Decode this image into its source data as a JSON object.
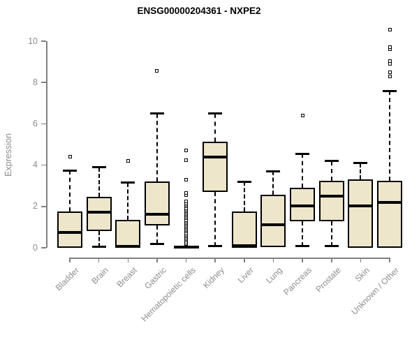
{
  "chart_data": {
    "type": "boxplot",
    "title": "ENSG00000204361 - NXPE2",
    "ylabel": "Expression",
    "xlabel": "",
    "ylim": [
      0,
      10.6
    ],
    "y_ticks": [
      0,
      2,
      4,
      6,
      8,
      10
    ],
    "grid": false,
    "legend": "none",
    "colors": {
      "box_fill": "#EDE6CB",
      "box_border": "#000000",
      "median": "#000000",
      "whisker": "#000000",
      "axis": "#808080",
      "axis_text": "#8c8c8c",
      "title_text": "#000000",
      "background": "#ffffff"
    },
    "categories": [
      "Bladder",
      "Brain",
      "Breast",
      "Gastric",
      "Hematopoietic cells",
      "Kidney",
      "Liver",
      "Lung",
      "Pancreas",
      "Prostate",
      "Skin",
      "Unknown / Other"
    ],
    "series": [
      {
        "name": "Bladder",
        "low": 0,
        "q1": 0,
        "median": 0.74,
        "q3": 1.76,
        "high": 3.75,
        "outliers": [
          4.4
        ]
      },
      {
        "name": "Brain",
        "low": 0.05,
        "q1": 0.8,
        "median": 1.72,
        "q3": 2.45,
        "high": 3.9,
        "outliers": []
      },
      {
        "name": "Breast",
        "low": 0,
        "q1": 0,
        "median": 0.08,
        "q3": 1.35,
        "high": 3.15,
        "outliers": [
          4.2
        ]
      },
      {
        "name": "Gastric",
        "low": 0.2,
        "q1": 1.08,
        "median": 1.62,
        "q3": 3.2,
        "high": 6.5,
        "outliers": [
          8.55
        ]
      },
      {
        "name": "Hematopoietic cells",
        "low": 0,
        "q1": 0,
        "median": 0.04,
        "q3": 0.1,
        "high": 0.1,
        "outliers": [
          0.2,
          0.27,
          0.34,
          0.42,
          0.49,
          0.56,
          0.63,
          0.7,
          0.78,
          0.85,
          0.92,
          0.99,
          1.06,
          1.13,
          1.2,
          1.28,
          1.35,
          1.42,
          1.49,
          1.56,
          1.63,
          1.7,
          1.78,
          1.85,
          1.92,
          2.0,
          2.08,
          2.15,
          2.25,
          2.55,
          2.65,
          3.3,
          4.25,
          4.72
        ]
      },
      {
        "name": "Kidney",
        "low": 0.07,
        "q1": 2.7,
        "median": 4.4,
        "q3": 5.13,
        "high": 6.5,
        "outliers": []
      },
      {
        "name": "Liver",
        "low": 0,
        "q1": 0,
        "median": 0.1,
        "q3": 1.76,
        "high": 3.2,
        "outliers": []
      },
      {
        "name": "Lung",
        "low": 0.05,
        "q1": 0.05,
        "median": 1.11,
        "q3": 2.57,
        "high": 3.7,
        "outliers": []
      },
      {
        "name": "Pancreas",
        "low": 0.07,
        "q1": 1.28,
        "median": 2.03,
        "q3": 2.9,
        "high": 4.55,
        "outliers": [
          6.4
        ]
      },
      {
        "name": "Prostate",
        "low": 0.07,
        "q1": 1.28,
        "median": 2.5,
        "q3": 3.25,
        "high": 4.2,
        "outliers": []
      },
      {
        "name": "Skin",
        "low": 0,
        "q1": 0,
        "median": 2.03,
        "q3": 3.3,
        "high": 4.1,
        "outliers": []
      },
      {
        "name": "Unknown / Other",
        "low": 0,
        "q1": 0,
        "median": 2.2,
        "q3": 3.25,
        "high": 7.6,
        "outliers": [
          8.3,
          8.5,
          8.9,
          9.05,
          9.6,
          9.7,
          10.55
        ]
      }
    ]
  }
}
